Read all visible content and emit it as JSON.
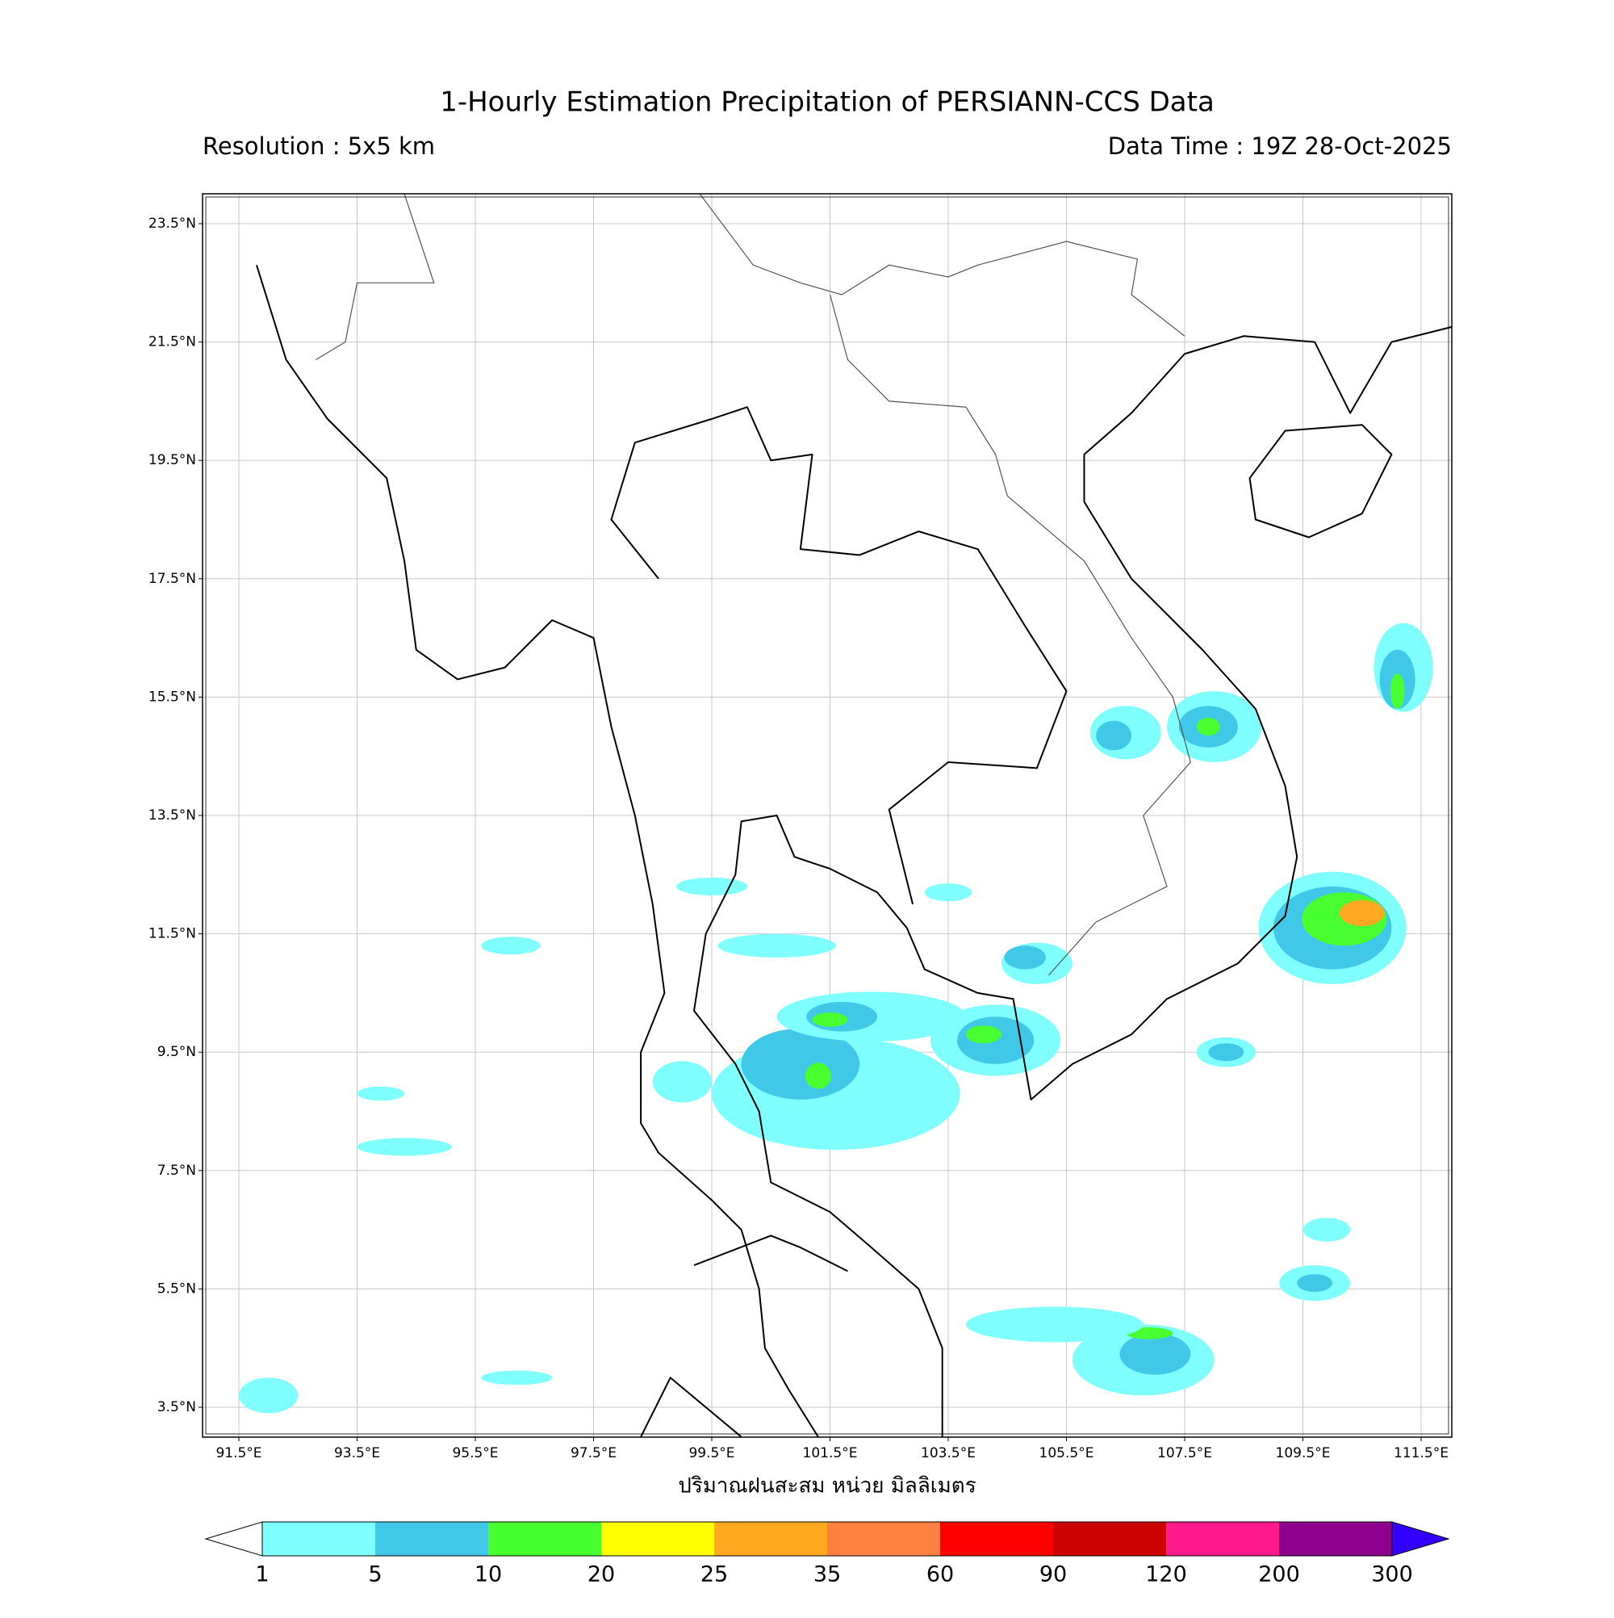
{
  "header": {
    "title": "1-Hourly Estimation Precipitation of PERSIANN-CCS Data",
    "resolution": "Resolution : 5x5 km",
    "data_time": "Data Time : 19Z 28-Oct-2025"
  },
  "map": {
    "lat_ticks": [
      {
        "value": 23.5,
        "label": "23.5°N"
      },
      {
        "value": 21.5,
        "label": "21.5°N"
      },
      {
        "value": 19.5,
        "label": "19.5°N"
      },
      {
        "value": 17.5,
        "label": "17.5°N"
      },
      {
        "value": 15.5,
        "label": "15.5°N"
      },
      {
        "value": 13.5,
        "label": "13.5°N"
      },
      {
        "value": 11.5,
        "label": "11.5°N"
      },
      {
        "value": 9.5,
        "label": "9.5°N"
      },
      {
        "value": 7.5,
        "label": "7.5°N"
      },
      {
        "value": 5.5,
        "label": "5.5°N"
      },
      {
        "value": 3.5,
        "label": "3.5°N"
      }
    ],
    "lon_ticks": [
      {
        "value": 91.5,
        "label": "91.5°E"
      },
      {
        "value": 93.5,
        "label": "93.5°E"
      },
      {
        "value": 95.5,
        "label": "95.5°E"
      },
      {
        "value": 97.5,
        "label": "97.5°E"
      },
      {
        "value": 99.5,
        "label": "99.5°E"
      },
      {
        "value": 101.5,
        "label": "101.5°E"
      },
      {
        "value": 103.5,
        "label": "103.5°E"
      },
      {
        "value": 105.5,
        "label": "105.5°E"
      },
      {
        "value": 107.5,
        "label": "107.5°E"
      },
      {
        "value": 109.5,
        "label": "109.5°E"
      },
      {
        "value": 111.5,
        "label": "111.5°E"
      }
    ],
    "xlabel": "ปริมาณฝนสะสม หน่วย มิลลิเมตร"
  },
  "colorbar": {
    "boundaries": [
      1,
      5,
      10,
      20,
      25,
      35,
      60,
      90,
      120,
      200,
      300
    ],
    "colors": [
      "#80ffff",
      "#40c8e8",
      "#48ff30",
      "#ffff00",
      "#ffa820",
      "#ff8040",
      "#ff0000",
      "#cc0000",
      "#ff1a8c",
      "#8c008c"
    ],
    "under_color": "#ffffff",
    "over_color": "#3300ff"
  }
}
